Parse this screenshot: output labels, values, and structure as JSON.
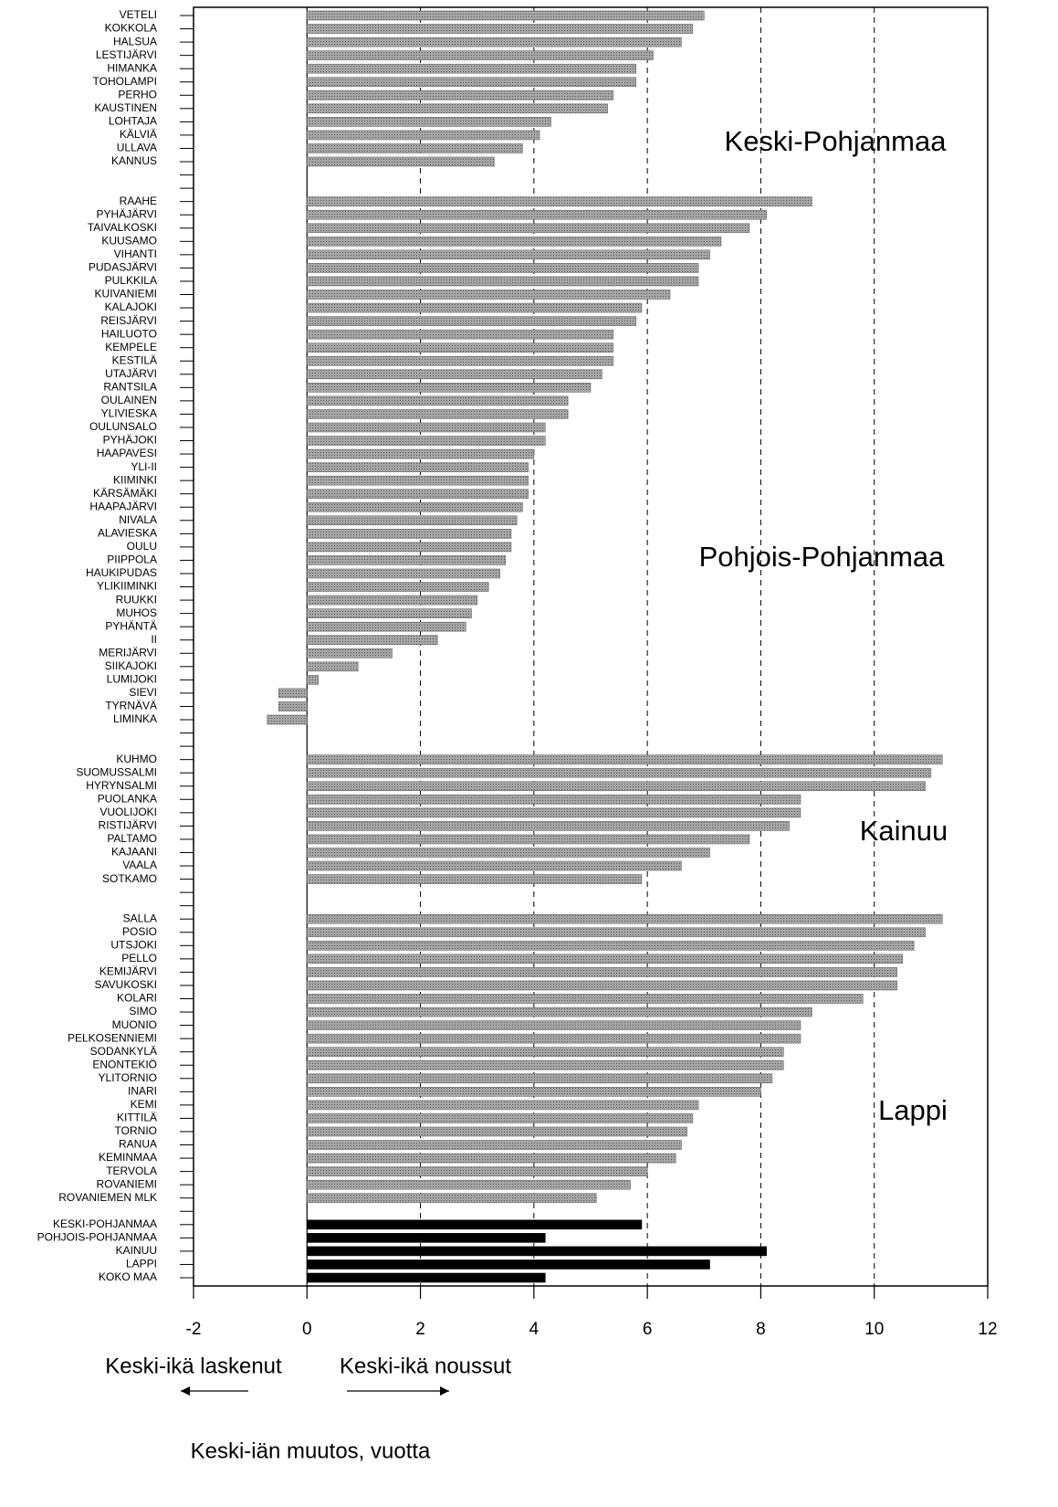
{
  "chart_data": {
    "type": "bar",
    "orientation": "horizontal",
    "x_label": "Keski-iän muutos, vuotta",
    "annotations": [
      "Keski-Pohjanmaa",
      "Pohjois-Pohjanmaa",
      "Kainuu",
      "Lappi",
      "Keski-ikä laskenut",
      "Keski-ikä noussut"
    ],
    "categories": [
      "VETELI",
      "KOKKOLA",
      "HALSUA",
      "LESTIJÄRVI",
      "HIMANKA",
      "TOHOLAMPI",
      "PERHO",
      "KAUSTINEN",
      "LOHTAJA",
      "KÄLVIÄ",
      "ULLAVA",
      "KANNUS",
      null,
      null,
      "RAAHE",
      "PYHÄJÄRVI",
      "TAIVALKOSKI",
      "KUUSAMO",
      "VIHANTI",
      "PUDASJÄRVI",
      "PULKKILA",
      "KUIVANIEMI",
      "KALAJOKI",
      "REISJÄRVI",
      "HAILUOTO",
      "KEMPELE",
      "KESTILÄ",
      "UTAJÄRVI",
      "RANTSILA",
      "OULAINEN",
      "YLIVIESKA",
      "OULUNSALO",
      "PYHÄJOKI",
      "HAAPAVESI",
      "YLI-II",
      "KIIMINKI",
      "KÄRSÄMÄKI",
      "HAAPAJÄRVI",
      "NIVALA",
      "ALAVIESKA",
      "OULU",
      "PIIPPOLA",
      "HAUKIPUDAS",
      "YLIKIIMINKI",
      "RUUKKI",
      "MUHOS",
      "PYHÄNTÄ",
      "II",
      "MERIJÄRVI",
      "SIIKAJOKI",
      "LUMIJOKI",
      "SIEVI",
      "TYRNÄVÄ",
      "LIMINKA",
      null,
      null,
      "KUHMO",
      "SUOMUSSALMI",
      "HYRYNSALMI",
      "PUOLANKA",
      "VUOLIJOKI",
      "RISTIJÄRVI",
      "PALTAMO",
      "KAJAANI",
      "VAALA",
      "SOTKAMO",
      null,
      null,
      "SALLA",
      "POSIO",
      "UTSJOKI",
      "PELLO",
      "KEMIJÄRVI",
      "SAVUKOSKI",
      "KOLARI",
      "SIMO",
      "MUONIO",
      "PELKOSENNIEMI",
      "SODANKYLÄ",
      "ENONTEKIÖ",
      "YLITORNIO",
      "INARI",
      "KEMI",
      "KITTILÄ",
      "TORNIO",
      "RANUA",
      "KEMINMAA",
      "TERVOLA",
      "ROVANIEMI",
      "ROVANIEMEN MLK",
      null,
      "KESKI-POHJANMAA",
      "POHJOIS-POHJANMAA",
      "KAINUU",
      "LAPPI",
      "KOKO MAA"
    ],
    "values": [
      7.0,
      6.8,
      6.6,
      6.1,
      5.8,
      5.8,
      5.4,
      5.3,
      4.3,
      4.1,
      3.8,
      3.3,
      null,
      null,
      8.9,
      8.1,
      7.8,
      7.3,
      7.1,
      6.9,
      6.9,
      6.4,
      5.9,
      5.8,
      5.4,
      5.4,
      5.4,
      5.2,
      5.0,
      4.6,
      4.6,
      4.2,
      4.2,
      4.0,
      3.9,
      3.9,
      3.9,
      3.8,
      3.7,
      3.6,
      3.6,
      3.5,
      3.4,
      3.2,
      3.0,
      2.9,
      2.8,
      2.3,
      1.5,
      0.9,
      0.2,
      -0.5,
      -0.5,
      -0.7,
      null,
      null,
      11.2,
      11.0,
      10.9,
      8.7,
      8.7,
      8.5,
      7.8,
      7.1,
      6.6,
      5.9,
      null,
      null,
      11.2,
      10.9,
      10.7,
      10.5,
      10.4,
      10.4,
      9.8,
      8.9,
      8.7,
      8.7,
      8.4,
      8.4,
      8.2,
      8.0,
      6.9,
      6.8,
      6.7,
      6.6,
      6.5,
      6.0,
      5.7,
      5.1,
      null,
      5.9,
      4.2,
      8.1,
      7.1,
      4.2
    ],
    "color": "#a6a6a6",
    "total_color": "#000000",
    "total_categories": [
      "KESKI-POHJANMAA",
      "POHJOIS-POHJANMAA",
      "KAINUU",
      "LAPPI",
      "KOKO MAA"
    ],
    "xlim": [
      -2,
      12
    ],
    "xticks": [
      -2,
      0,
      2,
      4,
      6,
      8,
      10,
      12
    ],
    "grid": true
  }
}
